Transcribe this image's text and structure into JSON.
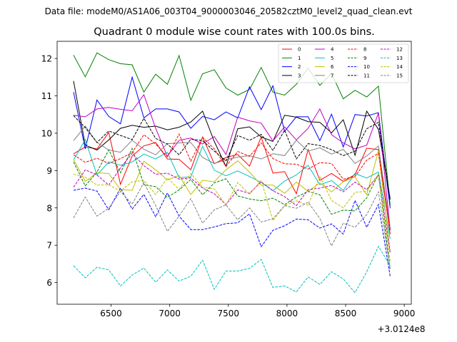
{
  "chart_data": {
    "type": "line",
    "suptitle": "Data file: modeM0/AS1A06_003T04_9000003046_20582cztM0_level2_quad_clean.evt",
    "title": "Quadrant 0 module wise count rates with 100.0s bins.",
    "xlabel": "",
    "ylabel": "",
    "x_offset_label": "+3.0124e8",
    "xlim": [
      6040,
      9060
    ],
    "ylim": [
      5.42,
      12.46
    ],
    "xticks": [
      6500,
      7000,
      7500,
      8000,
      8500,
      9000
    ],
    "yticks": [
      6,
      7,
      8,
      9,
      10,
      11,
      12
    ],
    "x": [
      6180,
      6280,
      6380,
      6480,
      6580,
      6680,
      6780,
      6880,
      6980,
      7080,
      7180,
      7280,
      7380,
      7480,
      7580,
      7680,
      7780,
      7880,
      7980,
      8080,
      8180,
      8280,
      8380,
      8480,
      8580,
      8680,
      8780,
      8880
    ],
    "legend_location": "upper right",
    "series": [
      {
        "name": "0",
        "color": "#ff0000",
        "dash": "solid",
        "values": [
          9.45,
          9.63,
          9.58,
          10.02,
          8.63,
          9.39,
          9.66,
          9.75,
          9.31,
          9.3,
          9.02,
          9.9,
          9.18,
          9.35,
          9.43,
          9.12,
          9.9,
          8.93,
          8.97,
          8.38,
          9.56,
          8.74,
          8.92,
          8.71,
          8.89,
          9.6,
          9.56,
          7.3
        ]
      },
      {
        "name": "1",
        "color": "#008000",
        "dash": "solid",
        "values": [
          12.09,
          11.51,
          12.15,
          11.97,
          11.86,
          11.83,
          11.1,
          11.58,
          11.31,
          12.08,
          10.88,
          11.59,
          11.7,
          11.21,
          11.02,
          11.17,
          11.76,
          11.1,
          11.02,
          11.31,
          11.74,
          11.28,
          11.6,
          10.92,
          11.15,
          10.97,
          11.26,
          8.06
        ]
      },
      {
        "name": "2",
        "color": "#0000ff",
        "dash": "solid",
        "values": [
          11.1,
          9.58,
          10.89,
          10.45,
          10.25,
          11.5,
          10.41,
          10.65,
          10.65,
          10.57,
          10.13,
          10.45,
          10.36,
          10.57,
          10.41,
          11.24,
          10.63,
          11.27,
          10.05,
          10.44,
          10.44,
          9.8,
          10.51,
          9.63,
          10.5,
          10.46,
          10.55,
          7.99
        ]
      },
      {
        "name": "3",
        "color": "#000000",
        "dash": "solid",
        "values": [
          11.4,
          9.68,
          9.55,
          9.82,
          10.13,
          10.21,
          10.16,
          10.19,
          10.09,
          10.16,
          10.3,
          10.59,
          9.78,
          9.11,
          10.12,
          10.17,
          9.9,
          9.78,
          10.48,
          10.43,
          10.31,
          10.29,
          10.01,
          10.36,
          9.41,
          10.59,
          10.1,
          8.23
        ]
      },
      {
        "name": "4",
        "color": "#c000c0",
        "dash": "solid",
        "values": [
          10.48,
          10.44,
          10.65,
          10.69,
          10.64,
          10.6,
          11.03,
          10.13,
          9.38,
          9.81,
          9.87,
          9.71,
          9.91,
          9.43,
          10.43,
          10.33,
          10.27,
          9.79,
          10.17,
          9.82,
          10.13,
          10.65,
          9.96,
          9.74,
          9.58,
          9.68,
          10.54,
          7.42
        ]
      },
      {
        "name": "5",
        "color": "#00c0c0",
        "dash": "solid",
        "values": [
          9.28,
          9.83,
          8.88,
          9.23,
          9.14,
          9.23,
          9.44,
          9.31,
          9.49,
          8.81,
          8.83,
          9.65,
          9.01,
          8.86,
          8.99,
          8.84,
          8.68,
          8.46,
          8.72,
          8.88,
          9.14,
          8.62,
          8.73,
          8.47,
          8.92,
          8.8,
          8.96,
          7.17
        ]
      },
      {
        "name": "6",
        "color": "#c0c000",
        "dash": "solid",
        "values": [
          9.3,
          8.71,
          8.94,
          8.92,
          8.49,
          8.47,
          9.25,
          9.02,
          8.75,
          8.87,
          8.36,
          8.74,
          8.7,
          9.02,
          9.26,
          8.96,
          8.61,
          8.61,
          8.39,
          8.69,
          8.44,
          8.67,
          8.43,
          8.7,
          8.83,
          8.35,
          9.53,
          6.81
        ]
      },
      {
        "name": "7",
        "color": "#808080",
        "dash": "solid",
        "values": [
          9.8,
          10.19,
          9.75,
          9.55,
          9.49,
          9.81,
          9.57,
          9.42,
          9.72,
          9.74,
          9.75,
          9.35,
          9.19,
          9.29,
          9.36,
          9.4,
          9.31,
          9.45,
          9.4,
          9.81,
          9.52,
          9.61,
          9.44,
          9.57,
          9.19,
          9.39,
          9.66,
          7.44
        ]
      },
      {
        "name": "8",
        "color": "#ff0000",
        "dash": "dashed",
        "values": [
          9.42,
          9.22,
          9.33,
          9.19,
          9.32,
          9.48,
          9.96,
          9.71,
          9.37,
          9.98,
          9.25,
          9.89,
          9.58,
          9.11,
          9.51,
          9.38,
          9.74,
          9.32,
          9.18,
          9.17,
          9.04,
          9.21,
          9.19,
          8.77,
          8.84,
          9.28,
          9.46,
          7.39
        ]
      },
      {
        "name": "9",
        "color": "#008000",
        "dash": "dashed",
        "values": [
          9.23,
          8.59,
          8.96,
          9.55,
          8.94,
          9.59,
          8.62,
          8.57,
          8.28,
          8.48,
          8.76,
          8.35,
          8.67,
          8.78,
          8.32,
          8.24,
          8.19,
          8.26,
          8.09,
          8.29,
          8.44,
          8.35,
          7.83,
          7.94,
          7.92,
          8.27,
          8.9,
          6.33
        ]
      },
      {
        "name": "10",
        "color": "#0000ff",
        "dash": "dashed",
        "values": [
          8.47,
          8.53,
          8.45,
          7.95,
          8.53,
          7.97,
          8.36,
          7.76,
          8.4,
          7.78,
          7.42,
          7.42,
          7.49,
          7.58,
          7.6,
          7.84,
          6.96,
          7.4,
          7.52,
          7.7,
          7.68,
          7.46,
          7.57,
          7.3,
          8.2,
          7.48,
          8.09,
          6.17
        ]
      },
      {
        "name": "11",
        "color": "#000000",
        "dash": "dashed",
        "values": [
          10.47,
          10.15,
          9.75,
          10.06,
          9.94,
          9.83,
          10.4,
          9.86,
          9.71,
          9.42,
          9.84,
          9.8,
          9.52,
          9.26,
          9.94,
          9.81,
          9.97,
          9.54,
          10.08,
          9.31,
          9.72,
          9.67,
          9.56,
          9.4,
          9.52,
          10.12,
          10.29,
          8.23
        ]
      },
      {
        "name": "12",
        "color": "#c000c0",
        "dash": "dashed",
        "values": [
          8.55,
          9.02,
          8.88,
          8.61,
          9.07,
          9.46,
          9.13,
          8.9,
          8.93,
          8.77,
          8.8,
          8.53,
          8.38,
          8.09,
          8.48,
          8.39,
          8.7,
          8.46,
          8.3,
          8.06,
          8.49,
          8.53,
          8.6,
          8.43,
          8.69,
          8.49,
          8.89,
          6.81
        ]
      },
      {
        "name": "13",
        "color": "#00c0c0",
        "dash": "dashed",
        "values": [
          6.45,
          6.13,
          6.41,
          6.34,
          5.91,
          6.2,
          6.39,
          6.01,
          6.34,
          6.04,
          6.17,
          6.6,
          5.82,
          6.31,
          6.31,
          6.38,
          6.62,
          5.87,
          5.91,
          5.75,
          6.15,
          5.95,
          6.29,
          6.1,
          5.73,
          6.29,
          6.97,
          6.45
        ]
      },
      {
        "name": "14",
        "color": "#c0c000",
        "dash": "dashed",
        "values": [
          8.9,
          8.82,
          8.61,
          8.62,
          8.45,
          8.7,
          8.74,
          8.36,
          8.8,
          8.5,
          8.92,
          8.55,
          8.51,
          8.07,
          8.68,
          8.36,
          8.74,
          7.66,
          8.06,
          8.19,
          8.07,
          8.85,
          8.2,
          8.0,
          8.42,
          8.44,
          8.9,
          6.57
        ]
      },
      {
        "name": "15",
        "color": "#808080",
        "dash": "dashed",
        "values": [
          7.73,
          8.29,
          7.78,
          7.99,
          8.44,
          8.1,
          8.68,
          8.06,
          7.37,
          7.78,
          8.25,
          7.59,
          7.95,
          8.08,
          7.68,
          8.0,
          7.62,
          7.71,
          8.06,
          7.99,
          8.15,
          7.72,
          6.98,
          7.59,
          7.48,
          7.82,
          8.43,
          6.38
        ]
      }
    ]
  }
}
